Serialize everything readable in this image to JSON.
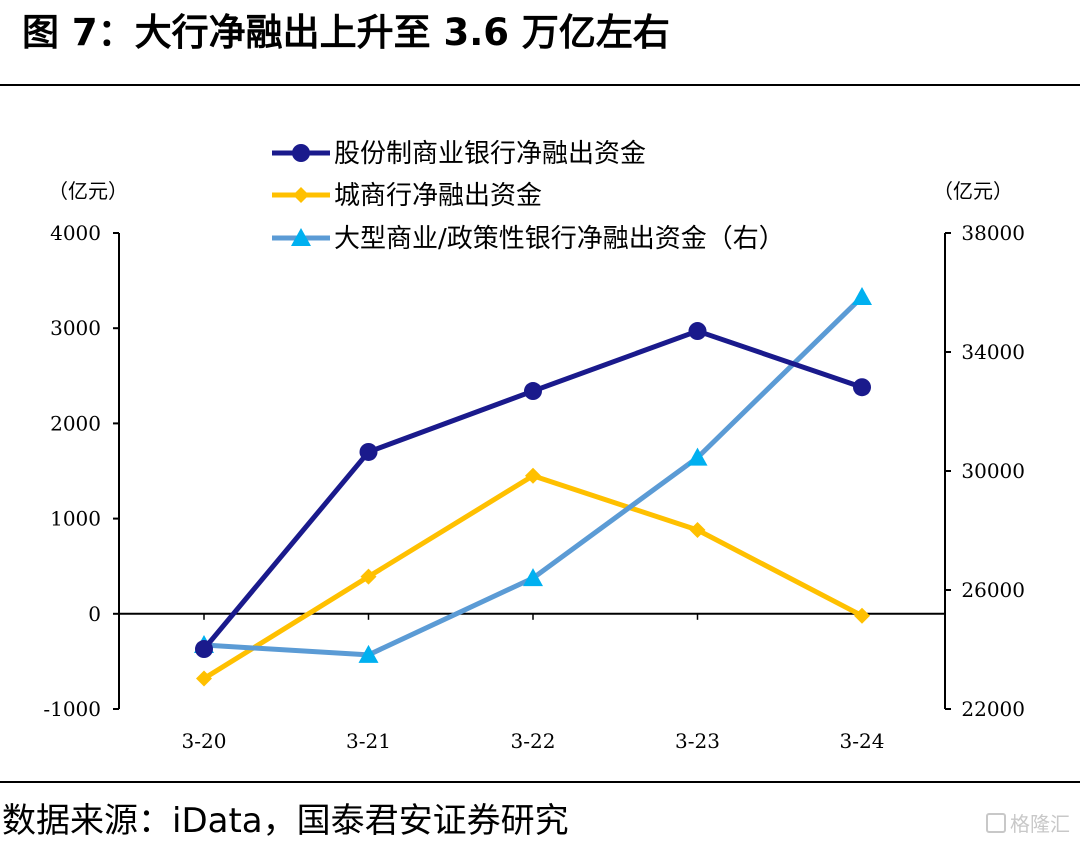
{
  "title": "图 7：大行净融出上升至 3.6 万亿左右",
  "source": "数据来源：iData，国泰君安证券研究",
  "watermark": "格隆汇",
  "chart_data": {
    "type": "line",
    "categories": [
      "3-20",
      "3-21",
      "3-22",
      "3-23",
      "3-24"
    ],
    "left_axis": {
      "unit": "（亿元）",
      "ylim": [
        -1000,
        4000
      ],
      "ticks": [
        -1000,
        0,
        1000,
        2000,
        3000,
        4000
      ]
    },
    "right_axis": {
      "unit": "（亿元）",
      "ylim": [
        22000,
        38000
      ],
      "ticks": [
        22000,
        26000,
        30000,
        34000,
        38000
      ]
    },
    "legend_position": "top",
    "series": [
      {
        "name": "股份制商业银行净融出资金",
        "axis": "left",
        "color": "#1a1a8c",
        "marker": "circle",
        "values": [
          -370,
          1700,
          2340,
          2970,
          2380
        ]
      },
      {
        "name": "城商行净融出资金",
        "axis": "left",
        "color": "#ffc000",
        "marker": "diamond",
        "values": [
          -680,
          390,
          1450,
          880,
          -20
        ]
      },
      {
        "name": "大型商业/政策性银行净融出资金（右）",
        "axis": "right",
        "color": "#5b9bd5",
        "marker": "triangle",
        "marker_color": "#00b0f0",
        "values": [
          24150,
          23820,
          26400,
          30450,
          35850
        ]
      }
    ]
  }
}
